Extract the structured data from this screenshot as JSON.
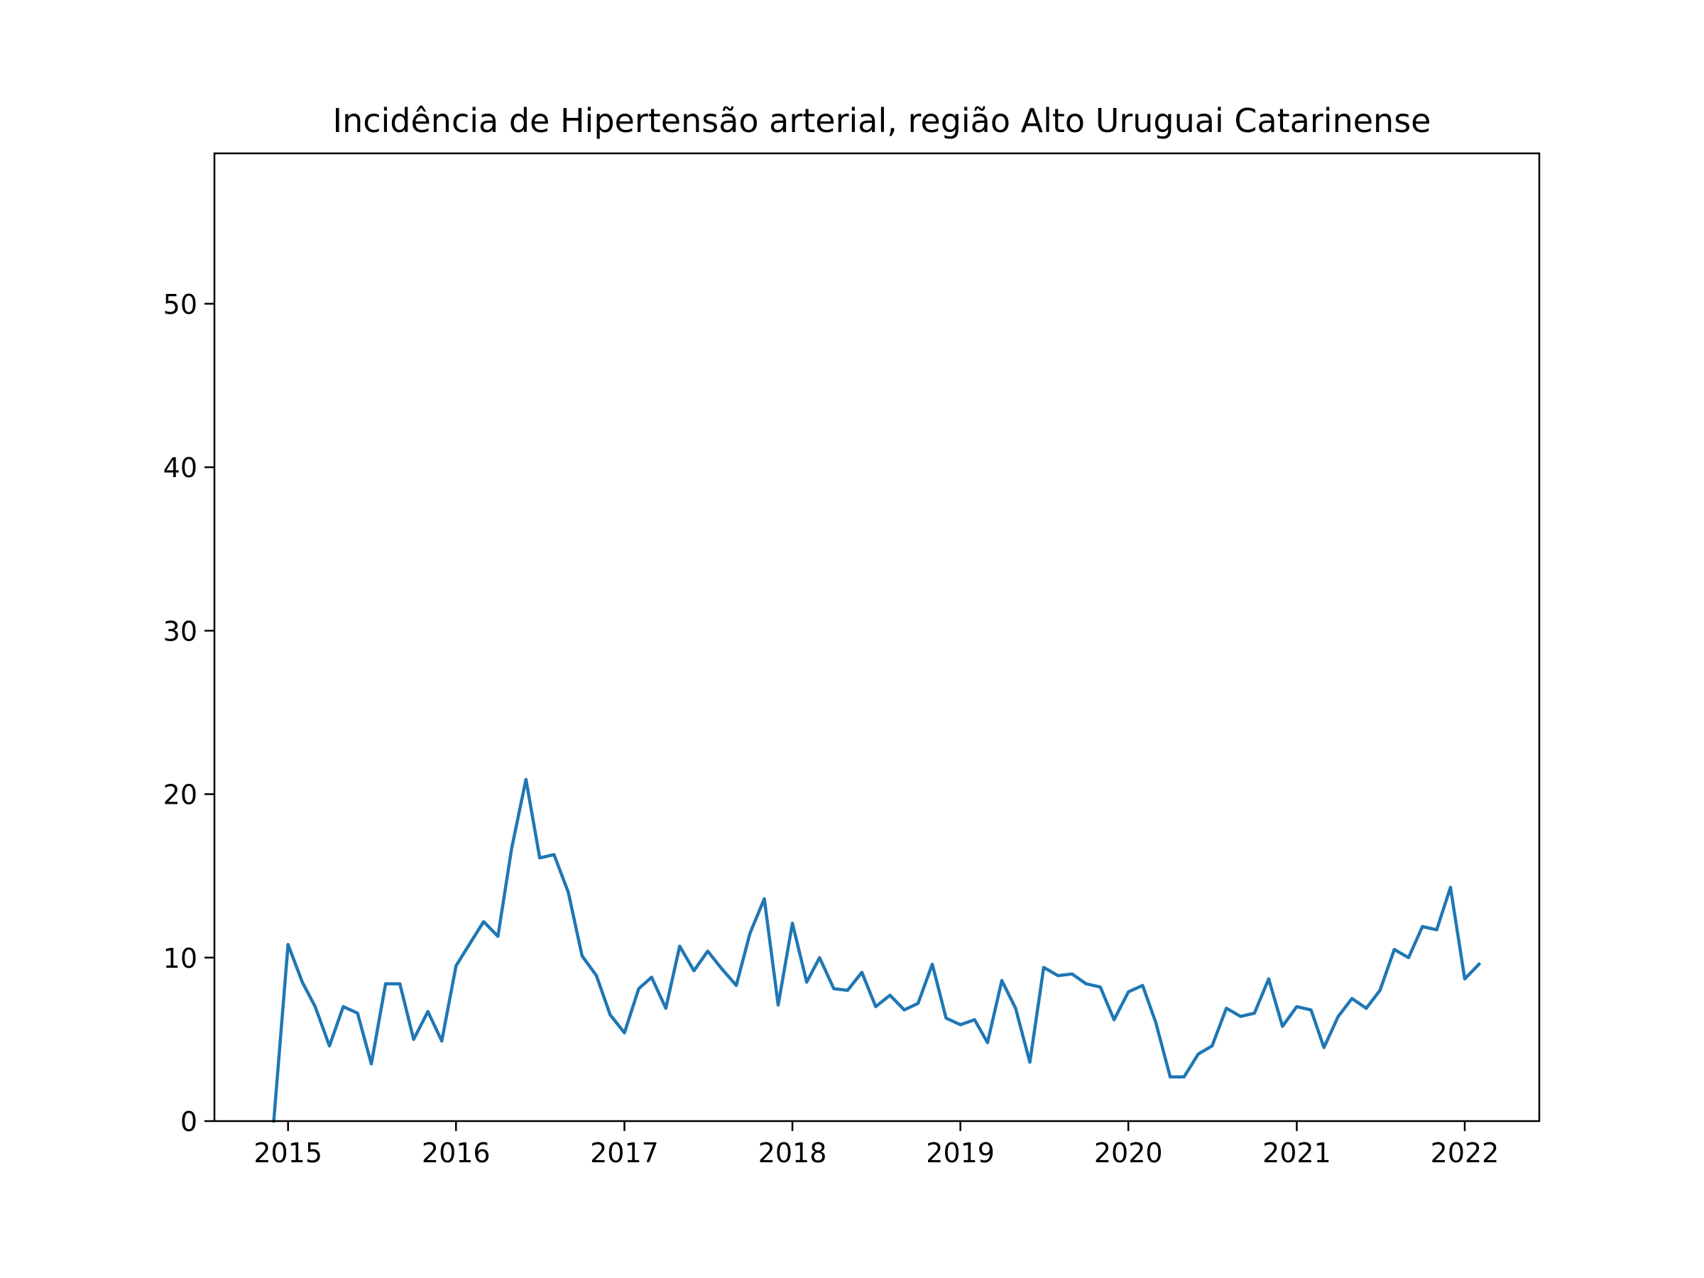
{
  "chart_data": {
    "type": "line",
    "title": "Incidência de Hipertensão arterial, região Alto Uruguai Catarinense",
    "xlabel": "",
    "ylabel": "",
    "xlim": [
      "2014-07-25",
      "2022-06-12"
    ],
    "ylim": [
      0,
      59.2
    ],
    "xticks": [
      "2015",
      "2016",
      "2017",
      "2018",
      "2019",
      "2020",
      "2021",
      "2022"
    ],
    "yticks": [
      0,
      10,
      20,
      30,
      40,
      50
    ],
    "grid": false,
    "legend": "none",
    "colors": {
      "line": "#1f77b4",
      "axes": "#000000",
      "background": "#ffffff"
    },
    "series": [
      {
        "x": [
          "2014-12-01",
          "2015-01-01",
          "2015-02-01",
          "2015-03-01",
          "2015-04-01",
          "2015-05-01",
          "2015-06-01",
          "2015-07-01",
          "2015-08-01",
          "2015-09-01",
          "2015-10-01",
          "2015-11-01",
          "2015-12-01",
          "2016-01-01",
          "2016-02-01",
          "2016-03-01",
          "2016-04-01",
          "2016-05-01",
          "2016-06-01",
          "2016-07-01",
          "2016-08-01",
          "2016-09-01",
          "2016-10-01",
          "2016-11-01",
          "2016-12-01",
          "2017-01-01",
          "2017-02-01",
          "2017-03-01",
          "2017-04-01",
          "2017-05-01",
          "2017-06-01",
          "2017-07-01",
          "2017-08-01",
          "2017-09-01",
          "2017-10-01",
          "2017-11-01",
          "2017-12-01",
          "2018-01-01",
          "2018-02-01",
          "2018-03-01",
          "2018-04-01",
          "2018-05-01",
          "2018-06-01",
          "2018-07-01",
          "2018-08-01",
          "2018-09-01",
          "2018-10-01",
          "2018-11-01",
          "2018-12-01",
          "2019-01-01",
          "2019-02-01",
          "2019-03-01",
          "2019-04-01",
          "2019-05-01",
          "2019-06-01",
          "2019-07-01",
          "2019-08-01",
          "2019-09-01",
          "2019-10-01",
          "2019-11-01",
          "2019-12-01",
          "2020-01-01",
          "2020-02-01",
          "2020-03-01",
          "2020-04-01",
          "2020-05-01",
          "2020-06-01",
          "2020-07-01",
          "2020-08-01",
          "2020-09-01",
          "2020-10-01",
          "2020-11-01",
          "2020-12-01",
          "2021-01-01",
          "2021-02-01",
          "2021-03-01",
          "2021-04-01",
          "2021-05-01",
          "2021-06-01",
          "2021-07-01",
          "2021-08-01",
          "2021-09-01",
          "2021-10-01",
          "2021-11-01",
          "2021-12-01",
          "2022-01-01",
          "2022-02-01"
        ],
        "y": [
          0,
          10.8,
          8.5,
          7.0,
          4.6,
          7.0,
          6.6,
          3.5,
          8.4,
          8.4,
          5.0,
          6.7,
          4.9,
          9.5,
          10.9,
          12.2,
          11.3,
          16.7,
          20.9,
          16.1,
          16.3,
          14.0,
          10.1,
          8.9,
          6.5,
          5.4,
          8.1,
          8.8,
          6.9,
          10.7,
          9.2,
          10.4,
          9.3,
          8.3,
          11.5,
          13.6,
          7.1,
          12.1,
          8.5,
          10.0,
          8.1,
          8.0,
          9.1,
          7.0,
          7.7,
          6.8,
          7.2,
          9.6,
          6.3,
          5.9,
          6.2,
          4.8,
          8.6,
          6.9,
          3.6,
          9.4,
          8.9,
          9.0,
          8.4,
          8.2,
          6.2,
          7.9,
          8.3,
          6.0,
          2.7,
          2.7,
          4.1,
          4.6,
          6.9,
          6.4,
          6.6,
          8.7,
          5.8,
          7.0,
          6.8,
          4.5,
          6.4,
          7.5,
          6.9,
          8.0,
          10.5,
          10.0,
          11.9,
          11.7,
          14.3,
          8.7,
          9.6
        ]
      }
    ]
  }
}
